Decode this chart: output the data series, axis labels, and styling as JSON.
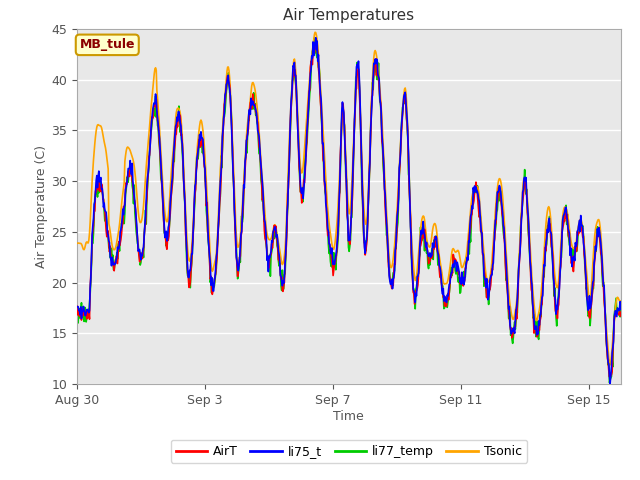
{
  "title": "Air Temperatures",
  "xlabel": "Time",
  "ylabel": "Air Temperature (C)",
  "ylim": [
    10,
    45
  ],
  "yticks": [
    10,
    15,
    20,
    25,
    30,
    35,
    40,
    45
  ],
  "xlim_start": 0,
  "xlim_end": 17.0,
  "annotation_text": "MB_tule",
  "legend_labels": [
    "AirT",
    "li75_t",
    "li77_temp",
    "Tsonic"
  ],
  "legend_colors": [
    "#ff0000",
    "#0000ff",
    "#00cc00",
    "#ffa500"
  ],
  "fig_bg_color": "#ffffff",
  "plot_bg_color": "#e8e8e8",
  "grid_color": "#ffffff",
  "title_color": "#333333",
  "label_color": "#555555",
  "lw": 1.2,
  "dates_x": [
    0,
    4,
    8,
    12,
    16
  ],
  "dates_labels": [
    "Aug 30",
    "Sep 3",
    "Sep 7",
    "Sep 11",
    "Sep 15"
  ],
  "base_peaks": [
    [
      0.4,
      17
    ],
    [
      0.6,
      29
    ],
    [
      1.1,
      22
    ],
    [
      1.5,
      28
    ],
    [
      1.7,
      31
    ],
    [
      2.0,
      22
    ],
    [
      2.2,
      29
    ],
    [
      2.5,
      37
    ],
    [
      2.8,
      24
    ],
    [
      3.0,
      31
    ],
    [
      3.3,
      33
    ],
    [
      3.5,
      20
    ],
    [
      3.7,
      29
    ],
    [
      4.0,
      31
    ],
    [
      4.2,
      20
    ],
    [
      4.5,
      30
    ],
    [
      4.8,
      38
    ],
    [
      5.0,
      22
    ],
    [
      5.2,
      28
    ],
    [
      5.5,
      38
    ],
    [
      5.8,
      29
    ],
    [
      6.0,
      22
    ],
    [
      6.2,
      25
    ],
    [
      6.5,
      21
    ],
    [
      6.8,
      41
    ],
    [
      7.0,
      29
    ],
    [
      7.2,
      35
    ],
    [
      7.5,
      43
    ],
    [
      7.8,
      27
    ],
    [
      8.0,
      22
    ],
    [
      8.2,
      28
    ],
    [
      8.3,
      37
    ],
    [
      8.5,
      24
    ],
    [
      8.8,
      41
    ],
    [
      9.0,
      23
    ],
    [
      9.2,
      36
    ],
    [
      9.5,
      37
    ],
    [
      9.8,
      20
    ],
    [
      10.0,
      25
    ],
    [
      10.3,
      37
    ],
    [
      10.5,
      20
    ],
    [
      10.8,
      25
    ],
    [
      11.0,
      22
    ],
    [
      11.2,
      24
    ],
    [
      11.5,
      18
    ],
    [
      11.8,
      22
    ],
    [
      12.0,
      20
    ],
    [
      12.2,
      22
    ],
    [
      12.5,
      29
    ],
    [
      12.8,
      19
    ],
    [
      13.0,
      22
    ],
    [
      13.2,
      29
    ],
    [
      13.5,
      17
    ],
    [
      13.8,
      20
    ],
    [
      14.0,
      30
    ],
    [
      14.2,
      20
    ],
    [
      14.5,
      17
    ],
    [
      14.8,
      25
    ],
    [
      15.0,
      17
    ],
    [
      15.2,
      26
    ],
    [
      15.5,
      22
    ],
    [
      15.8,
      25
    ],
    [
      16.0,
      17
    ],
    [
      16.3,
      25
    ],
    [
      16.5,
      17
    ],
    [
      16.8,
      17
    ]
  ]
}
